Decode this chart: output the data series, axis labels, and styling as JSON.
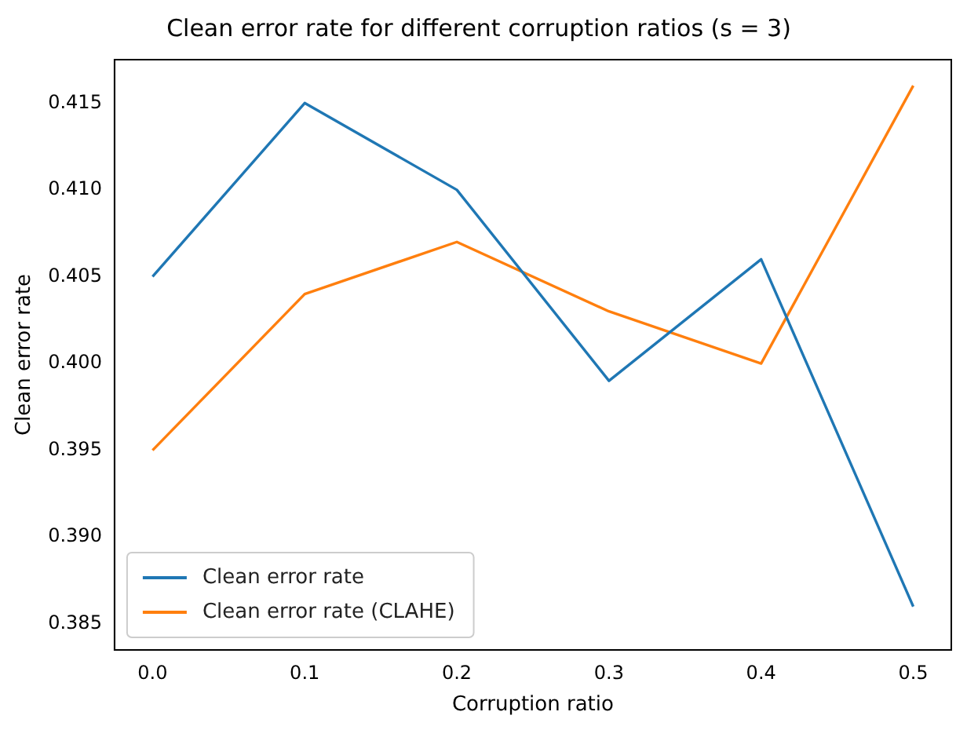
{
  "chart_data": {
    "type": "line",
    "title": "Clean error rate for different corruption ratios (s = 3)",
    "xlabel": "Corruption ratio",
    "ylabel": "Clean error rate",
    "x": [
      0.0,
      0.1,
      0.2,
      0.3,
      0.4,
      0.5
    ],
    "series": [
      {
        "name": "Clean error rate",
        "color": "#1f77b4",
        "values": [
          0.405,
          0.415,
          0.41,
          0.399,
          0.406,
          0.386
        ]
      },
      {
        "name": "Clean error rate (CLAHE)",
        "color": "#ff7f0e",
        "values": [
          0.395,
          0.404,
          0.407,
          0.403,
          0.4,
          0.416
        ]
      }
    ],
    "xlim": [
      -0.025,
      0.525
    ],
    "xticks": [
      {
        "value": 0,
        "label": "0.0"
      },
      0.1,
      0.2,
      0.3,
      0.4,
      0.5
    ],
    "ylim": [
      0.3835,
      0.4175
    ],
    "yticks": [
      0.385,
      {
        "value": 0.39,
        "label": "0.390"
      },
      0.395,
      {
        "value": 0.4,
        "label": "0.400"
      },
      0.405,
      {
        "value": 0.41,
        "label": "0.410"
      },
      0.415
    ],
    "grid": false,
    "legend": "bottom left",
    "marker": "none",
    "line_style": "solid"
  }
}
